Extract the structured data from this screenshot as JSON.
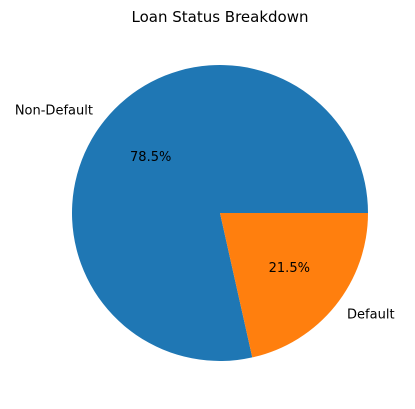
{
  "chart_data": {
    "type": "pie",
    "title": "Loan Status Breakdown",
    "slices": [
      {
        "label": "Non-Default",
        "value": 78.5,
        "pct_label": "78.5%",
        "color": "#1f77b4"
      },
      {
        "label": "Default",
        "value": 21.5,
        "pct_label": "21.5%",
        "color": "#ff7f0e"
      }
    ],
    "start_angle": "3 o'clock",
    "direction": "counterclockwise"
  }
}
